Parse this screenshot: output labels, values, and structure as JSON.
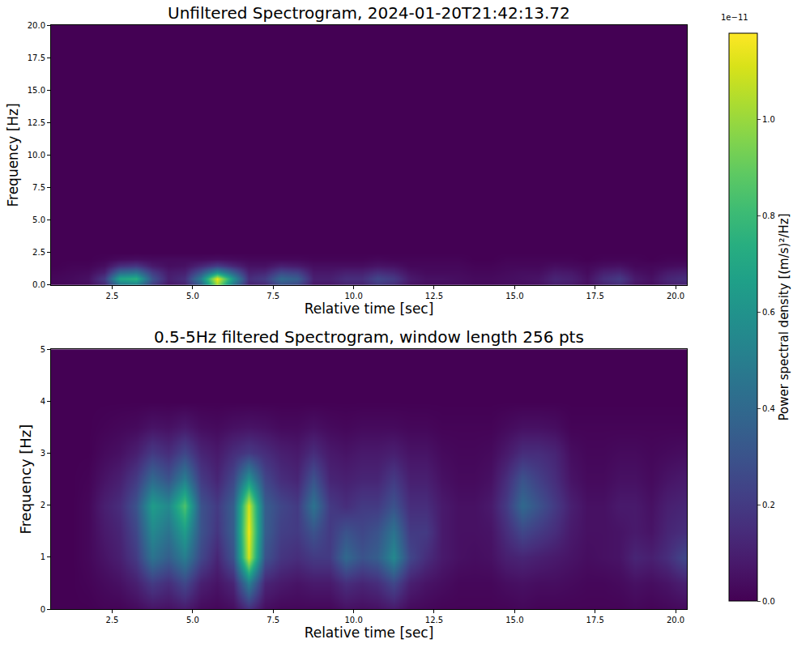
{
  "chart_data": {
    "type": "heatmap",
    "colorbar": {
      "title": "Power spectral density [(m/s)²/Hz]",
      "offset_label": "1e−11",
      "zlim": [
        0,
        1.18
      ],
      "zticks": [
        {
          "value": 0,
          "label": "0.0"
        },
        0.2,
        0.4,
        0.6,
        0.8,
        {
          "value": 1,
          "label": "1.0"
        }
      ]
    },
    "panels": [
      {
        "type": "heatmap",
        "title": "Unfiltered Spectrogram, 2024-01-20T21:42:13.72",
        "x_label": "Relative time [sec]",
        "y_label": "Frequency [Hz]",
        "xlim": [
          0.6,
          20.35
        ],
        "ylim": [
          0,
          20
        ],
        "xticks": [
          2.5,
          {
            "value": 5,
            "label": "5.0"
          },
          7.5,
          {
            "value": 10,
            "label": "10.0"
          },
          12.5,
          {
            "value": 15,
            "label": "15.0"
          },
          17.5,
          {
            "value": 20,
            "label": "20.0"
          }
        ],
        "yticks": [
          {
            "value": 0,
            "label": "0.0"
          },
          2.5,
          {
            "value": 5,
            "label": "5.0"
          },
          7.5,
          {
            "value": 10,
            "label": "10.0"
          },
          12.5,
          {
            "value": 15,
            "label": "15.0"
          },
          17.5,
          {
            "value": 20,
            "label": "20.0"
          }
        ],
        "x": [
          0.75,
          1.25,
          1.75,
          2.25,
          2.75,
          3.25,
          3.75,
          4.25,
          4.75,
          5.25,
          5.75,
          6.25,
          6.75,
          7.25,
          7.75,
          8.25,
          8.75,
          9.25,
          9.75,
          10.25,
          10.75,
          11.25,
          11.75,
          12.25,
          12.75,
          13.25,
          13.75,
          14.25,
          14.75,
          15.25,
          15.75,
          16.25,
          16.75,
          17.25,
          17.75,
          18.25,
          18.75,
          19.25,
          19.75,
          20.25
        ],
        "y": [
          0,
          0.5,
          1,
          1.5,
          2,
          2.5,
          20
        ],
        "z": [
          [
            0.01,
            0.02,
            0.03,
            0.12,
            0.45,
            0.5,
            0.2,
            0.06,
            0.1,
            0.35,
            1.0,
            0.45,
            0.1,
            0.12,
            0.28,
            0.25,
            0.06,
            0.06,
            0.1,
            0.1,
            0.18,
            0.14,
            0.05,
            0.03,
            0.03,
            0.03,
            0.02,
            0.02,
            0.03,
            0.03,
            0.04,
            0.08,
            0.07,
            0.03,
            0.1,
            0.14,
            0.05,
            0.03,
            0.08,
            0.1
          ],
          [
            0.02,
            0.03,
            0.05,
            0.2,
            0.7,
            0.75,
            0.3,
            0.1,
            0.15,
            0.5,
            1.15,
            0.6,
            0.15,
            0.2,
            0.4,
            0.35,
            0.1,
            0.1,
            0.15,
            0.15,
            0.25,
            0.2,
            0.08,
            0.05,
            0.05,
            0.04,
            0.03,
            0.03,
            0.04,
            0.05,
            0.06,
            0.12,
            0.1,
            0.05,
            0.15,
            0.2,
            0.08,
            0.05,
            0.12,
            0.15
          ],
          [
            0.01,
            0.02,
            0.03,
            0.1,
            0.4,
            0.45,
            0.2,
            0.08,
            0.1,
            0.3,
            0.6,
            0.35,
            0.1,
            0.12,
            0.25,
            0.22,
            0.07,
            0.07,
            0.1,
            0.1,
            0.15,
            0.12,
            0.05,
            0.03,
            0.03,
            0.03,
            0.02,
            0.02,
            0.03,
            0.04,
            0.04,
            0.08,
            0.07,
            0.03,
            0.1,
            0.12,
            0.05,
            0.03,
            0.08,
            0.1
          ],
          [
            0,
            0.01,
            0.01,
            0.04,
            0.15,
            0.18,
            0.08,
            0.04,
            0.05,
            0.12,
            0.2,
            0.12,
            0.05,
            0.05,
            0.1,
            0.08,
            0.04,
            0.04,
            0.04,
            0.04,
            0.06,
            0.05,
            0.02,
            0.02,
            0.02,
            0.02,
            0.01,
            0.01,
            0.02,
            0.02,
            0.02,
            0.04,
            0.03,
            0.02,
            0.04,
            0.05,
            0.02,
            0.02,
            0.03,
            0.04
          ],
          [
            0,
            0,
            0,
            0.01,
            0.03,
            0.04,
            0.03,
            0.03,
            0.03,
            0.03,
            0.04,
            0.03,
            0.02,
            0.02,
            0.02,
            0.02,
            0.01,
            0.01,
            0.01,
            0.01,
            0.02,
            0.01,
            0.01,
            0.01,
            0.01,
            0.01,
            0,
            0,
            0.01,
            0.01,
            0.01,
            0.01,
            0.01,
            0,
            0.01,
            0.01,
            0.01,
            0,
            0.01,
            0.01
          ],
          [
            0,
            0,
            0,
            0,
            0,
            0,
            0,
            0,
            0,
            0,
            0,
            0,
            0,
            0,
            0,
            0,
            0,
            0,
            0,
            0,
            0,
            0,
            0,
            0,
            0,
            0,
            0,
            0,
            0,
            0,
            0,
            0,
            0,
            0,
            0,
            0,
            0,
            0,
            0,
            0
          ],
          [
            0,
            0,
            0,
            0,
            0,
            0,
            0,
            0,
            0,
            0,
            0,
            0,
            0,
            0,
            0,
            0,
            0,
            0,
            0,
            0,
            0,
            0,
            0,
            0,
            0,
            0,
            0,
            0,
            0,
            0,
            0,
            0,
            0,
            0,
            0,
            0,
            0,
            0,
            0,
            0
          ]
        ]
      },
      {
        "type": "heatmap",
        "title": "0.5-5Hz filtered Spectrogram, window length 256 pts",
        "x_label": "Relative time [sec]",
        "y_label": "Frequency [Hz]",
        "xlim": [
          0.6,
          20.35
        ],
        "ylim": [
          0,
          5
        ],
        "xticks": [
          2.5,
          {
            "value": 5,
            "label": "5.0"
          },
          7.5,
          {
            "value": 10,
            "label": "10.0"
          },
          12.5,
          {
            "value": 15,
            "label": "15.0"
          },
          17.5,
          {
            "value": 20,
            "label": "20.0"
          }
        ],
        "yticks": [
          0,
          1,
          2,
          3,
          4,
          5
        ],
        "x": [
          0.75,
          1.25,
          1.75,
          2.25,
          2.75,
          3.25,
          3.75,
          4.25,
          4.75,
          5.25,
          5.75,
          6.25,
          6.75,
          7.25,
          7.75,
          8.25,
          8.75,
          9.25,
          9.75,
          10.25,
          10.75,
          11.25,
          11.75,
          12.25,
          12.75,
          13.25,
          13.75,
          14.25,
          14.75,
          15.25,
          15.75,
          16.25,
          16.75,
          17.25,
          17.75,
          18.25,
          18.75,
          19.25,
          19.75,
          20.25
        ],
        "y": [
          0,
          0.5,
          1,
          1.5,
          2,
          2.5,
          3,
          3.5,
          4,
          4.5,
          5
        ],
        "z": [
          [
            0,
            0,
            0,
            0.01,
            0.01,
            0.03,
            0.06,
            0.05,
            0.08,
            0.03,
            0.02,
            0.04,
            0.15,
            0.04,
            0.02,
            0.02,
            0.02,
            0.02,
            0.05,
            0.04,
            0.05,
            0.08,
            0.03,
            0.02,
            0.01,
            0.01,
            0.01,
            0.01,
            0.01,
            0.02,
            0.01,
            0.01,
            0.01,
            0.01,
            0.01,
            0.01,
            0.02,
            0.01,
            0.02,
            0.03
          ],
          [
            0,
            0,
            0.01,
            0.03,
            0.05,
            0.1,
            0.2,
            0.15,
            0.25,
            0.1,
            0.06,
            0.12,
            0.5,
            0.12,
            0.08,
            0.06,
            0.08,
            0.08,
            0.15,
            0.12,
            0.15,
            0.25,
            0.1,
            0.06,
            0.04,
            0.02,
            0.02,
            0.02,
            0.04,
            0.05,
            0.04,
            0.04,
            0.03,
            0.02,
            0.02,
            0.03,
            0.05,
            0.04,
            0.06,
            0.1
          ],
          [
            0,
            0,
            0.02,
            0.06,
            0.1,
            0.2,
            0.45,
            0.35,
            0.5,
            0.25,
            0.12,
            0.3,
            1.1,
            0.3,
            0.18,
            0.15,
            0.2,
            0.2,
            0.4,
            0.3,
            0.35,
            0.55,
            0.25,
            0.15,
            0.08,
            0.05,
            0.04,
            0.05,
            0.1,
            0.12,
            0.1,
            0.08,
            0.06,
            0.04,
            0.05,
            0.06,
            0.12,
            0.1,
            0.15,
            0.25
          ],
          [
            0,
            0,
            0.02,
            0.08,
            0.12,
            0.25,
            0.55,
            0.45,
            0.65,
            0.3,
            0.18,
            0.35,
            1.15,
            0.35,
            0.22,
            0.2,
            0.3,
            0.2,
            0.3,
            0.25,
            0.3,
            0.45,
            0.2,
            0.2,
            0.08,
            0.05,
            0.05,
            0.06,
            0.15,
            0.25,
            0.2,
            0.15,
            0.08,
            0.05,
            0.05,
            0.06,
            0.08,
            0.06,
            0.12,
            0.15
          ],
          [
            0,
            0,
            0.02,
            0.1,
            0.15,
            0.3,
            0.65,
            0.55,
            0.85,
            0.3,
            0.2,
            0.35,
            1.1,
            0.35,
            0.25,
            0.2,
            0.45,
            0.2,
            0.15,
            0.2,
            0.2,
            0.3,
            0.15,
            0.15,
            0.08,
            0.05,
            0.05,
            0.08,
            0.2,
            0.4,
            0.3,
            0.2,
            0.1,
            0.05,
            0.05,
            0.08,
            0.08,
            0.05,
            0.1,
            0.12
          ],
          [
            0,
            0,
            0.01,
            0.06,
            0.1,
            0.2,
            0.4,
            0.3,
            0.5,
            0.2,
            0.12,
            0.25,
            0.6,
            0.25,
            0.15,
            0.12,
            0.3,
            0.12,
            0.1,
            0.12,
            0.12,
            0.2,
            0.1,
            0.1,
            0.05,
            0.03,
            0.03,
            0.05,
            0.15,
            0.3,
            0.22,
            0.15,
            0.06,
            0.03,
            0.03,
            0.05,
            0.05,
            0.03,
            0.06,
            0.08
          ],
          [
            0,
            0,
            0,
            0.03,
            0.05,
            0.1,
            0.2,
            0.15,
            0.25,
            0.12,
            0.08,
            0.15,
            0.2,
            0.15,
            0.1,
            0.08,
            0.15,
            0.08,
            0.06,
            0.08,
            0.08,
            0.1,
            0.06,
            0.06,
            0.03,
            0.02,
            0.02,
            0.03,
            0.08,
            0.15,
            0.15,
            0.12,
            0.04,
            0.02,
            0.02,
            0.03,
            0.03,
            0.02,
            0.03,
            0.04
          ],
          [
            0,
            0,
            0,
            0.01,
            0.02,
            0.03,
            0.06,
            0.05,
            0.08,
            0.04,
            0.03,
            0.05,
            0.06,
            0.05,
            0.03,
            0.03,
            0.05,
            0.03,
            0.02,
            0.03,
            0.03,
            0.03,
            0.02,
            0.02,
            0.01,
            0.01,
            0.01,
            0.01,
            0.03,
            0.05,
            0.05,
            0.04,
            0.01,
            0.01,
            0.01,
            0.01,
            0.01,
            0.01,
            0.01,
            0.01
          ],
          [
            0,
            0,
            0,
            0,
            0,
            0,
            0,
            0,
            0,
            0,
            0,
            0,
            0,
            0,
            0,
            0,
            0,
            0,
            0,
            0,
            0,
            0,
            0,
            0,
            0,
            0,
            0,
            0,
            0,
            0,
            0,
            0,
            0,
            0,
            0,
            0,
            0,
            0,
            0,
            0
          ],
          [
            0,
            0,
            0,
            0,
            0,
            0,
            0,
            0,
            0,
            0,
            0,
            0,
            0,
            0,
            0,
            0,
            0,
            0,
            0,
            0,
            0,
            0,
            0,
            0,
            0,
            0,
            0,
            0,
            0,
            0,
            0,
            0,
            0,
            0,
            0,
            0,
            0,
            0,
            0,
            0
          ],
          [
            0,
            0,
            0,
            0,
            0,
            0,
            0,
            0,
            0,
            0,
            0,
            0,
            0,
            0,
            0,
            0,
            0,
            0,
            0,
            0,
            0,
            0,
            0,
            0,
            0,
            0,
            0,
            0,
            0,
            0,
            0,
            0,
            0,
            0,
            0,
            0,
            0,
            0,
            0,
            0
          ]
        ]
      }
    ]
  }
}
